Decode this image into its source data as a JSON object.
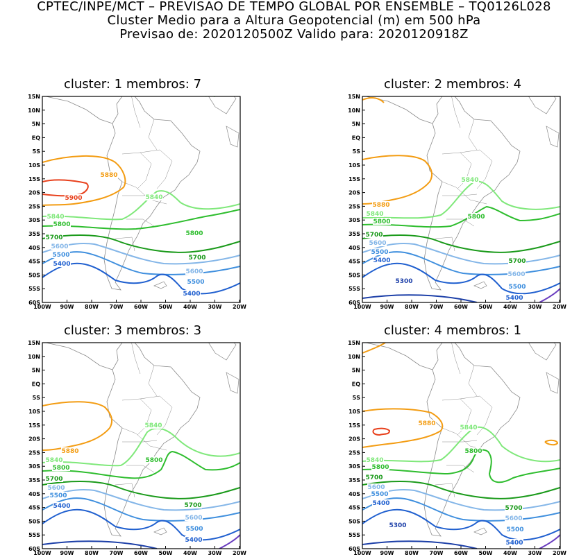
{
  "header": {
    "line1": "CPTEC/INPE/MCT – PREVISAO DE TEMPO GLOBAL POR ENSEMBLE – TQ0126L028",
    "line2": "Cluster Medio para a Altura Geopotencial (m) em 500 hPa",
    "line3": "Previsao de: 2020120500Z    Valido para: 2020120918Z"
  },
  "axes": {
    "lat_ticks": [
      "15N",
      "10N",
      "5N",
      "EQ",
      "5S",
      "10S",
      "15S",
      "20S",
      "25S",
      "30S",
      "35S",
      "40S",
      "45S",
      "50S",
      "55S",
      "60S"
    ],
    "lon_ticks": [
      "100W",
      "90W",
      "80W",
      "70W",
      "60W",
      "50W",
      "40W",
      "30W",
      "20W"
    ]
  },
  "colors": {
    "c5900": "#e8401c",
    "c5880": "#f39c12",
    "c5840": "#7fe87a",
    "c5800": "#2ebd2e",
    "c5700": "#1a9a1a",
    "c5600": "#84b6e8",
    "c5500": "#3f8fde",
    "c5400": "#1f5fcf",
    "c5300": "#1c3fa8",
    "c5200": "#6a3dbf",
    "coast": "#8a8a8a"
  },
  "panels": [
    {
      "title": "cluster: 1   membros: 7",
      "labels": [
        {
          "text": "5900",
          "color": "c5900"
        },
        {
          "text": "5880",
          "color": "c5880"
        },
        {
          "text": "5840",
          "color": "c5840"
        },
        {
          "text": "5840",
          "color": "c5840"
        },
        {
          "text": "5800",
          "color": "c5800"
        },
        {
          "text": "5800",
          "color": "c5800"
        },
        {
          "text": "5700",
          "color": "c5700"
        },
        {
          "text": "5700",
          "color": "c5700"
        },
        {
          "text": "5600",
          "color": "c5600"
        },
        {
          "text": "5600",
          "color": "c5600"
        },
        {
          "text": "5500",
          "color": "c5500"
        },
        {
          "text": "5500",
          "color": "c5500"
        },
        {
          "text": "5400",
          "color": "c5400"
        },
        {
          "text": "5400",
          "color": "c5400"
        }
      ]
    },
    {
      "title": "cluster: 2   membros: 4",
      "labels": [
        {
          "text": "5880",
          "color": "c5880"
        },
        {
          "text": "5840",
          "color": "c5840"
        },
        {
          "text": "5840",
          "color": "c5840"
        },
        {
          "text": "5800",
          "color": "c5800"
        },
        {
          "text": "5800",
          "color": "c5800"
        },
        {
          "text": "5700",
          "color": "c5700"
        },
        {
          "text": "5700",
          "color": "c5700"
        },
        {
          "text": "5600",
          "color": "c5600"
        },
        {
          "text": "5600",
          "color": "c5600"
        },
        {
          "text": "5500",
          "color": "c5500"
        },
        {
          "text": "5500",
          "color": "c5500"
        },
        {
          "text": "5400",
          "color": "c5400"
        },
        {
          "text": "5400",
          "color": "c5400"
        },
        {
          "text": "5300",
          "color": "c5300"
        }
      ]
    },
    {
      "title": "cluster: 3   membros: 3",
      "labels": [
        {
          "text": "5880",
          "color": "c5880"
        },
        {
          "text": "5840",
          "color": "c5840"
        },
        {
          "text": "5840",
          "color": "c5840"
        },
        {
          "text": "5800",
          "color": "c5800"
        },
        {
          "text": "5800",
          "color": "c5800"
        },
        {
          "text": "5700",
          "color": "c5700"
        },
        {
          "text": "5700",
          "color": "c5700"
        },
        {
          "text": "5600",
          "color": "c5600"
        },
        {
          "text": "5600",
          "color": "c5600"
        },
        {
          "text": "5500",
          "color": "c5500"
        },
        {
          "text": "5500",
          "color": "c5500"
        },
        {
          "text": "5400",
          "color": "c5400"
        },
        {
          "text": "5400",
          "color": "c5400"
        }
      ]
    },
    {
      "title": "cluster: 4   membros: 1",
      "labels": [
        {
          "text": "5880",
          "color": "c5880"
        },
        {
          "text": "5840",
          "color": "c5840"
        },
        {
          "text": "5840",
          "color": "c5840"
        },
        {
          "text": "5800",
          "color": "c5800"
        },
        {
          "text": "5800",
          "color": "c5800"
        },
        {
          "text": "5700",
          "color": "c5700"
        },
        {
          "text": "5700",
          "color": "c5700"
        },
        {
          "text": "5600",
          "color": "c5600"
        },
        {
          "text": "5600",
          "color": "c5600"
        },
        {
          "text": "5500",
          "color": "c5500"
        },
        {
          "text": "5500",
          "color": "c5500"
        },
        {
          "text": "5400",
          "color": "c5400"
        },
        {
          "text": "5400",
          "color": "c5400"
        },
        {
          "text": "5300",
          "color": "c5300"
        }
      ]
    }
  ]
}
